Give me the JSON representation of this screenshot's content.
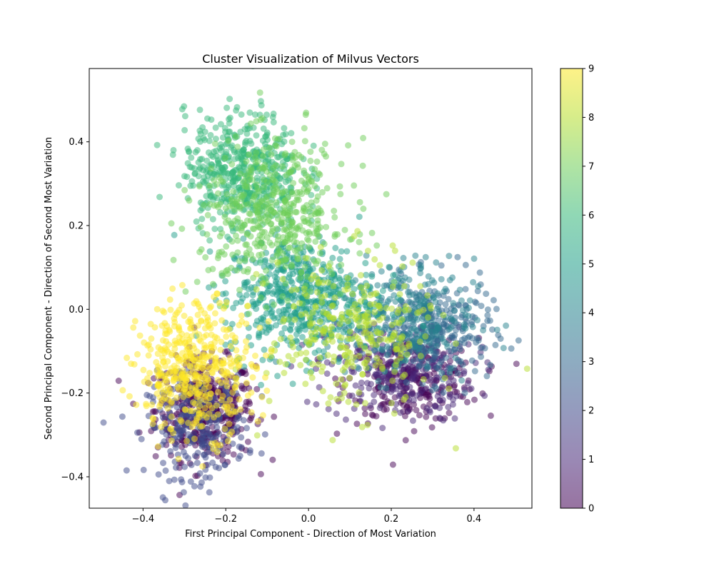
{
  "chart_data": {
    "type": "scatter",
    "title": "Cluster Visualization of Milvus Vectors",
    "xlabel": "First Principal Component - Direction of Most Variation",
    "ylabel": "Second Principal Component - Direction of Second Most Variation",
    "xlim": [
      -0.53,
      0.54
    ],
    "ylim": [
      -0.475,
      0.575
    ],
    "xticks": [
      -0.4,
      -0.2,
      0.0,
      0.2,
      0.4
    ],
    "yticks": [
      -0.4,
      -0.2,
      0.0,
      0.2,
      0.4
    ],
    "xtick_labels": [
      "−0.4",
      "−0.2",
      "0.0",
      "0.2",
      "0.4"
    ],
    "ytick_labels": [
      "−0.4",
      "−0.2",
      "0.0",
      "0.2",
      "0.4"
    ],
    "colorbar": {
      "label": "",
      "range": [
        0,
        9
      ],
      "ticks": [
        0,
        1,
        2,
        3,
        4,
        5,
        6,
        7,
        8,
        9
      ],
      "colormap": "viridis",
      "alpha": 0.5
    },
    "grid": false,
    "clusters": [
      {
        "label": 0,
        "center": [
          -0.25,
          -0.24
        ],
        "spread": [
          0.06,
          0.06
        ],
        "count": 420
      },
      {
        "label": 0,
        "center": [
          0.25,
          -0.17
        ],
        "spread": [
          0.08,
          0.05
        ],
        "count": 260
      },
      {
        "label": 1,
        "center": [
          0.22,
          -0.15
        ],
        "spread": [
          0.09,
          0.06
        ],
        "count": 240
      },
      {
        "label": 2,
        "center": [
          -0.27,
          -0.28
        ],
        "spread": [
          0.06,
          0.06
        ],
        "count": 260
      },
      {
        "label": 3,
        "center": [
          0.3,
          -0.05
        ],
        "spread": [
          0.07,
          0.06
        ],
        "count": 300
      },
      {
        "label": 4,
        "center": [
          0.22,
          -0.02
        ],
        "spread": [
          0.09,
          0.07
        ],
        "count": 260
      },
      {
        "label": 5,
        "center": [
          -0.02,
          0.03
        ],
        "spread": [
          0.09,
          0.07
        ],
        "count": 520
      },
      {
        "label": 6,
        "center": [
          -0.16,
          0.33
        ],
        "spread": [
          0.07,
          0.07
        ],
        "count": 480
      },
      {
        "label": 7,
        "center": [
          -0.08,
          0.22
        ],
        "spread": [
          0.09,
          0.09
        ],
        "count": 480
      },
      {
        "label": 8,
        "center": [
          0.1,
          -0.06
        ],
        "spread": [
          0.1,
          0.09
        ],
        "count": 300
      },
      {
        "label": 9,
        "center": [
          -0.27,
          -0.14
        ],
        "spread": [
          0.07,
          0.08
        ],
        "count": 450
      }
    ]
  }
}
